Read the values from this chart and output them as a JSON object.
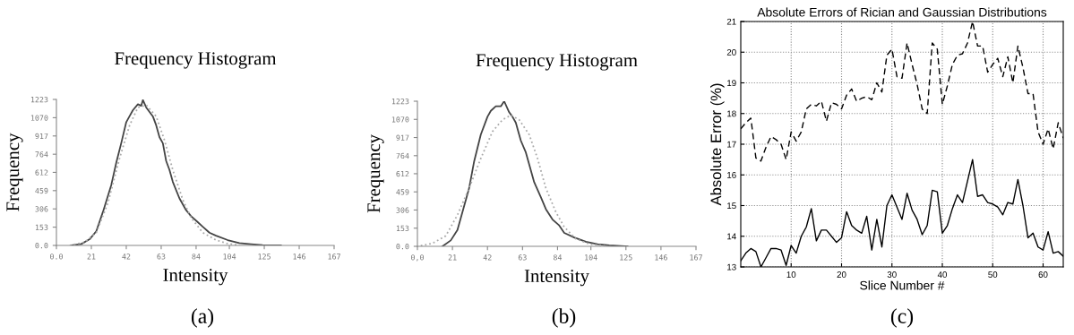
{
  "chart_data": [
    {
      "type": "line",
      "title": "Frequency Histogram",
      "xlabel": "Intensity",
      "ylabel": "Frequency",
      "annotations": [
        "(a)"
      ],
      "xlim": [
        0,
        167
      ],
      "ylim": [
        0,
        1223
      ],
      "xticks": [
        {
          "value": 0,
          "label": "0.0"
        },
        21,
        42,
        63,
        84,
        104,
        125,
        146,
        167
      ],
      "yticks": [
        {
          "value": 0,
          "label": "0.0"
        },
        153,
        306,
        459,
        612,
        764,
        917,
        1070,
        1223
      ],
      "grid": false,
      "legend": false,
      "series": [
        {
          "color": "#444444",
          "line_style": "solid",
          "x": [
            9,
            15,
            20,
            24,
            28,
            33,
            36,
            39,
            42,
            44,
            46,
            49,
            51,
            52,
            54,
            56,
            58,
            60,
            62,
            64,
            66,
            68,
            70,
            74,
            78,
            81,
            85,
            88,
            92,
            96,
            103,
            110,
            117,
            124,
            135
          ],
          "values": [
            0,
            12,
            52,
            120,
            282,
            507,
            694,
            858,
            1033,
            1083,
            1133,
            1183,
            1170,
            1218,
            1156,
            1118,
            1081,
            1006,
            906,
            856,
            707,
            632,
            532,
            394,
            295,
            245,
            195,
            157,
            107,
            82,
            45,
            20,
            10,
            2,
            0
          ]
        },
        {
          "color": "#aaaaaa",
          "line_style": "dotted",
          "x": [
            8,
            17,
            24,
            31,
            38,
            44,
            49,
            54,
            60,
            65,
            70,
            76,
            81,
            88,
            96,
            103,
            110
          ],
          "values": [
            0,
            27,
            107,
            357,
            731,
            1006,
            1156,
            1176,
            1081,
            881,
            632,
            382,
            232,
            107,
            45,
            15,
            2
          ]
        }
      ]
    },
    {
      "type": "line",
      "title": "Frequency Histogram",
      "xlabel": "Intensity",
      "ylabel": "Frequency",
      "annotations": [
        "(b)"
      ],
      "xlim": [
        0,
        167
      ],
      "ylim": [
        0,
        1223
      ],
      "xticks": [
        {
          "value": 0,
          "label": "0,0"
        },
        21,
        42,
        63,
        84,
        104,
        125,
        146,
        167
      ],
      "yticks": [
        {
          "value": 0,
          "label": "0.0"
        },
        153,
        306,
        459,
        612,
        764,
        917,
        1070,
        1223
      ],
      "grid": false,
      "legend": false,
      "series": [
        {
          "color": "#444444",
          "line_style": "solid",
          "x": [
            15,
            20,
            24,
            27,
            31,
            34,
            38,
            42,
            44,
            47,
            50,
            52,
            55,
            57,
            59,
            60,
            62,
            65,
            67,
            70,
            74,
            77,
            81,
            85,
            88,
            94,
            101,
            108,
            115,
            126
          ],
          "values": [
            0,
            50,
            138,
            289,
            490,
            716,
            942,
            1092,
            1142,
            1180,
            1180,
            1223,
            1130,
            1092,
            1042,
            991,
            891,
            791,
            690,
            540,
            414,
            314,
            226,
            176,
            113,
            75,
            38,
            18,
            8,
            0
          ]
        },
        {
          "color": "#aaaaaa",
          "line_style": "dotted",
          "x": [
            2,
            9,
            17,
            24,
            31,
            38,
            45,
            51,
            56,
            61,
            67,
            72,
            77,
            83,
            88,
            95,
            103,
            112
          ],
          "values": [
            5,
            25,
            88,
            264,
            490,
            741,
            967,
            1067,
            1105,
            1067,
            942,
            741,
            490,
            289,
            163,
            63,
            20,
            5
          ]
        }
      ]
    },
    {
      "type": "line",
      "title": "Absolute Errors of Rician and Gaussian Distributions",
      "xlabel": "Slice Number #",
      "ylabel": "Absolute Error (%)",
      "annotations": [
        "(c)"
      ],
      "xlim": [
        0,
        64
      ],
      "ylim": [
        13,
        21
      ],
      "xticks": [
        10,
        20,
        30,
        40,
        50,
        60
      ],
      "x": [
        0,
        1,
        2,
        3,
        4,
        5,
        6,
        7,
        8,
        9,
        10,
        11,
        12,
        13,
        14,
        15,
        16,
        17,
        18,
        19,
        20,
        21,
        22,
        23,
        24,
        25,
        26,
        27,
        28,
        29,
        30,
        31,
        32,
        33,
        34,
        35,
        36,
        37,
        38,
        39,
        40,
        41,
        42,
        43,
        44,
        45,
        46,
        47,
        48,
        49,
        50,
        51,
        52,
        53,
        54,
        55,
        56,
        57,
        58,
        59,
        60,
        61,
        62,
        63,
        64
      ],
      "yticks": [
        13,
        14,
        15,
        16,
        17,
        18,
        19,
        20,
        21
      ],
      "grid": true,
      "legend": false,
      "series": [
        {
          "color": "#000000",
          "line_style": "dashed",
          "values": [
            17.5,
            17.7,
            17.85,
            16.55,
            16.45,
            16.9,
            17.25,
            17.15,
            17.0,
            16.5,
            17.4,
            17.1,
            17.4,
            18.15,
            18.3,
            18.25,
            18.4,
            17.75,
            18.35,
            18.3,
            18.15,
            18.6,
            18.8,
            18.4,
            18.5,
            18.55,
            18.45,
            19.0,
            18.7,
            19.9,
            20.1,
            19.2,
            19.15,
            20.3,
            19.6,
            18.95,
            18.15,
            18.0,
            20.3,
            20.1,
            18.3,
            18.9,
            19.6,
            19.9,
            19.95,
            20.3,
            21.0,
            20.2,
            20.2,
            19.35,
            19.6,
            19.8,
            19.2,
            19.85,
            19.0,
            20.2,
            19.5,
            18.65,
            18.65,
            17.4,
            17.0,
            17.5,
            16.85,
            17.7,
            17.2
          ]
        },
        {
          "color": "#000000",
          "line_style": "solid",
          "values": [
            13.2,
            13.45,
            13.6,
            13.5,
            13.0,
            13.3,
            13.6,
            13.6,
            13.55,
            13.05,
            13.7,
            13.45,
            14.0,
            14.3,
            14.9,
            13.85,
            14.2,
            14.2,
            14.0,
            13.8,
            13.95,
            14.8,
            14.35,
            14.2,
            14.1,
            14.65,
            13.55,
            14.55,
            13.65,
            15.0,
            15.35,
            14.95,
            14.55,
            15.4,
            14.85,
            14.55,
            14.05,
            14.35,
            15.5,
            15.45,
            14.1,
            14.35,
            14.9,
            15.35,
            15.1,
            15.8,
            16.5,
            15.3,
            15.35,
            15.1,
            15.05,
            14.95,
            14.7,
            15.1,
            15.05,
            15.85,
            15.0,
            13.95,
            14.1,
            13.65,
            13.55,
            14.15,
            13.45,
            13.5,
            13.35
          ]
        }
      ]
    }
  ]
}
